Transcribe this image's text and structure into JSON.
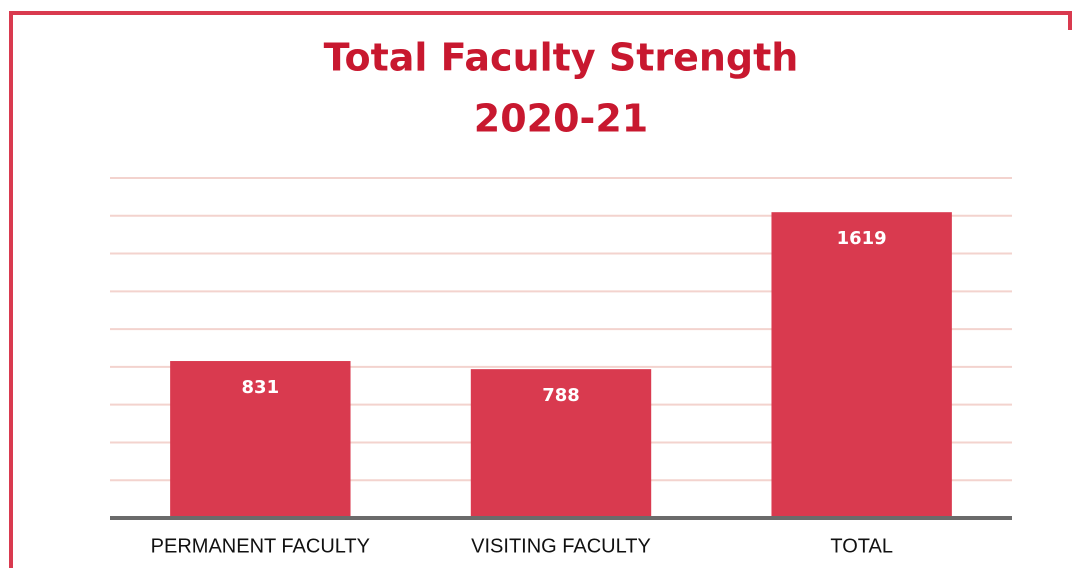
{
  "chart_data": {
    "type": "bar",
    "title": "Total Faculty Strength",
    "subtitle": "2020-21",
    "categories": [
      "PERMANENT FACULTY",
      "VISITING FACULTY",
      "TOTAL"
    ],
    "values": [
      831,
      788,
      1619
    ],
    "color": "#d93a4f",
    "ylim": [
      0,
      1800
    ],
    "yticks": [
      0,
      200,
      400,
      600,
      800,
      1000,
      1200,
      1400,
      1600,
      1800
    ],
    "grid": true
  }
}
